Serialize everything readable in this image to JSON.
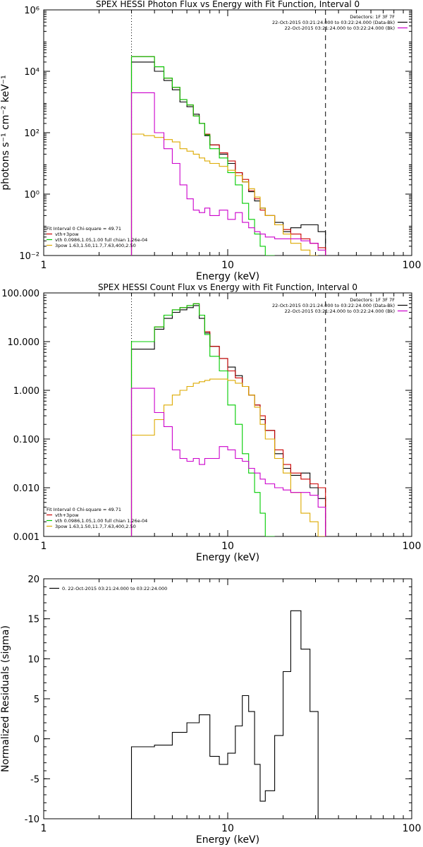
{
  "chart_data": [
    {
      "type": "line",
      "title": "SPEX HESSI Photon Flux vs Energy with Fit Function, Interval 0",
      "xlabel": "Energy (keV)",
      "ylabel": "photons s⁻¹ cm⁻² keV⁻¹",
      "xscale": "log",
      "yscale": "log",
      "xlim": [
        1,
        100
      ],
      "ylim": [
        0.01,
        1000000
      ],
      "xticks": [
        {
          "v": 1,
          "label": "1"
        },
        {
          "v": 10,
          "label": "10"
        },
        {
          "v": 100,
          "label": "100"
        }
      ],
      "yticks": [
        {
          "v": 0.01,
          "label": "10⁻²"
        },
        {
          "v": 1,
          "label": "10⁰"
        },
        {
          "v": 100,
          "label": "10²"
        },
        {
          "v": 10000,
          "label": "10⁴"
        },
        {
          "v": 1000000,
          "label": "10⁶"
        }
      ],
      "vlines": [
        {
          "x": 3.0,
          "style": "dotted"
        },
        {
          "x": 34.0,
          "style": "dashed"
        }
      ],
      "info": [
        "Detectors: 1F 3F 7F",
        "22-Oct-2015 03:21:24.000 to 03:22:24.000 (Data-Bk)",
        "22-Oct-2015 03:21:24.000 to 03:22:24.000 (Bk)"
      ],
      "info_colors": [
        "",
        "#000000",
        "#cc00cc"
      ],
      "legend": [
        {
          "label": "Fit Interval 0   Chi-square = 49.71",
          "color": ""
        },
        {
          "label": "vth+3pow",
          "color": "#cc0000"
        },
        {
          "label": "vth 0.0986,1.05,1.00  full chian 1.26e-04",
          "color": "#00cc00"
        },
        {
          "label": "3pow 1.63,1.50,11.7,7.63,400,2.50",
          "color": "#ddaa00"
        }
      ],
      "edges": [
        3.0,
        3.5,
        4.0,
        4.5,
        5.0,
        5.5,
        6.0,
        6.5,
        7.0,
        7.5,
        8.0,
        9.0,
        10.0,
        11.0,
        12.0,
        13.0,
        14.0,
        15.0,
        16.0,
        18.0,
        20.0,
        22.0,
        25.0,
        28.0,
        31.0,
        34.0
      ],
      "series": [
        {
          "name": "Data-Bk",
          "color": "#000000",
          "values": [
            20000,
            20000,
            10000,
            5000,
            2500,
            1000,
            700,
            400,
            200,
            80,
            40,
            20,
            10,
            5,
            2.5,
            1.2,
            0.6,
            0.35,
            0.2,
            0.12,
            0.06,
            0.08,
            0.1,
            0.1,
            0.06
          ]
        },
        {
          "name": "vth+3pow",
          "color": "#cc0000",
          "values": [
            30000,
            30000,
            14000,
            6000,
            3000,
            1200,
            800,
            350,
            200,
            90,
            40,
            22,
            12,
            5,
            3,
            1.3,
            0.7,
            0.3,
            0.2,
            0.1,
            0.07,
            0.05,
            0.035,
            0.025,
            0.018
          ]
        },
        {
          "name": "vth",
          "color": "#00cc00",
          "values": [
            30000,
            30000,
            14000,
            6000,
            3000,
            1200,
            800,
            350,
            200,
            85,
            30,
            15,
            5,
            2,
            0.5,
            0.15,
            0.05,
            0.02,
            0.01
          ]
        },
        {
          "name": "3pow",
          "color": "#ddaa00",
          "values": [
            90,
            80,
            70,
            60,
            50,
            30,
            25,
            20,
            15,
            12,
            10,
            8,
            6,
            4,
            2.5,
            1.5,
            0.8,
            0.35,
            0.2,
            0.1,
            0.05,
            0.025,
            0.015,
            0.01
          ]
        },
        {
          "name": "Bk",
          "color": "#cc00cc",
          "values": [
            2000,
            2000,
            100,
            30,
            10,
            2,
            0.7,
            0.3,
            0.25,
            0.35,
            0.2,
            0.3,
            0.15,
            0.25,
            0.12,
            0.08,
            0.06,
            0.05,
            0.04,
            0.035,
            0.035,
            0.035,
            0.03,
            0.025,
            0.015
          ]
        }
      ]
    },
    {
      "type": "line",
      "title": "SPEX HESSI Count Flux vs Energy with Fit Function, Interval 0",
      "xlabel": "Energy (keV)",
      "ylabel": "",
      "xscale": "log",
      "yscale": "log",
      "xlim": [
        1,
        100
      ],
      "ylim": [
        0.001,
        100
      ],
      "xticks": [
        {
          "v": 1,
          "label": "1"
        },
        {
          "v": 10,
          "label": "10"
        },
        {
          "v": 100,
          "label": "100"
        }
      ],
      "yticks": [
        {
          "v": 0.001,
          "label": "0.001"
        },
        {
          "v": 0.01,
          "label": "0.010"
        },
        {
          "v": 0.1,
          "label": "0.100"
        },
        {
          "v": 1,
          "label": "1.000"
        },
        {
          "v": 10,
          "label": "10.000"
        },
        {
          "v": 100,
          "label": "100.000"
        }
      ],
      "vlines": [
        {
          "x": 3.0,
          "style": "dotted"
        },
        {
          "x": 34.0,
          "style": "dashed"
        }
      ],
      "info": [
        "Detectors: 1F 3F 7F",
        "22-Oct-2015 03:21:24.000 to 03:22:24.000 (Data-Bk)",
        "22-Oct-2015 03:21:24.000 to 03:22:24.000 (Bk)"
      ],
      "info_colors": [
        "",
        "#000000",
        "#cc00cc"
      ],
      "legend": [
        {
          "label": "Fit Interval 0   Chi-square = 49.71",
          "color": ""
        },
        {
          "label": "vth+3pow",
          "color": "#cc0000"
        },
        {
          "label": "vth 0.0986,1.05,1.00  full chian 1.26e-04",
          "color": "#00cc00"
        },
        {
          "label": "3pow 1.63,1.50,11.7,7.63,400,2.50",
          "color": "#ddaa00"
        }
      ],
      "edges": [
        3.0,
        3.5,
        4.0,
        4.5,
        5.0,
        5.5,
        6.0,
        6.5,
        7.0,
        7.5,
        8.0,
        9.0,
        10.0,
        11.0,
        12.0,
        13.0,
        14.0,
        15.0,
        16.0,
        18.0,
        20.0,
        22.0,
        25.0,
        28.0,
        31.0,
        34.0
      ],
      "series": [
        {
          "name": "Data-Bk",
          "color": "#000000",
          "values": [
            7,
            7,
            18,
            30,
            40,
            45,
            50,
            55,
            30,
            15,
            8,
            4.5,
            3,
            2,
            1.2,
            0.8,
            0.5,
            0.25,
            0.15,
            0.05,
            0.025,
            0.018,
            0.02,
            0.01,
            0.006
          ]
        },
        {
          "name": "vth+3pow",
          "color": "#cc0000",
          "values": [
            10,
            10,
            20,
            35,
            45,
            50,
            55,
            60,
            35,
            16,
            8,
            4.5,
            2.5,
            1.8,
            1.2,
            0.8,
            0.5,
            0.3,
            0.15,
            0.06,
            0.03,
            0.02,
            0.015,
            0.012,
            0.01
          ]
        },
        {
          "name": "vth",
          "color": "#00cc00",
          "values": [
            10,
            10,
            20,
            35,
            45,
            50,
            55,
            60,
            35,
            14,
            5,
            2.5,
            0.5,
            0.2,
            0.05,
            0.02,
            0.008,
            0.003,
            0.001
          ]
        },
        {
          "name": "3pow",
          "color": "#ddaa00",
          "values": [
            0.12,
            0.12,
            0.25,
            0.5,
            0.8,
            1.0,
            1.2,
            1.4,
            1.5,
            1.6,
            1.7,
            1.7,
            1.6,
            1.4,
            1.2,
            0.8,
            0.45,
            0.2,
            0.1,
            0.04,
            0.02,
            0.008,
            0.003,
            0.002,
            0.001
          ]
        },
        {
          "name": "Bk",
          "color": "#cc00cc",
          "values": [
            1.1,
            1.1,
            0.35,
            0.18,
            0.06,
            0.04,
            0.035,
            0.04,
            0.03,
            0.04,
            0.04,
            0.07,
            0.06,
            0.04,
            0.035,
            0.025,
            0.02,
            0.015,
            0.012,
            0.01,
            0.009,
            0.008,
            0.008,
            0.007,
            0.004
          ]
        }
      ]
    },
    {
      "type": "line",
      "title": "",
      "xlabel": "Energy (keV)",
      "ylabel": "Normalized Residuals (sigma)",
      "xscale": "log",
      "yscale": "linear",
      "xlim": [
        1,
        100
      ],
      "ylim": [
        -10,
        20
      ],
      "xticks": [
        {
          "v": 1,
          "label": "1"
        },
        {
          "v": 10,
          "label": "10"
        },
        {
          "v": 100,
          "label": "100"
        }
      ],
      "yticks": [
        {
          "v": -10,
          "label": "-10"
        },
        {
          "v": -5,
          "label": "-5"
        },
        {
          "v": 0,
          "label": "0"
        },
        {
          "v": 5,
          "label": "5"
        },
        {
          "v": 10,
          "label": "10"
        },
        {
          "v": 15,
          "label": "15"
        },
        {
          "v": 20,
          "label": "20"
        }
      ],
      "vlines": [],
      "info": [],
      "info_colors": [],
      "legend": [
        {
          "label": "0. 22-Oct-2015 03:21:24.000 to 03:22:24.000",
          "color": "#000000"
        }
      ],
      "edges": [
        3.0,
        4.0,
        5.0,
        6.0,
        7.0,
        8.0,
        9.0,
        10.0,
        11.0,
        12.0,
        13.0,
        14.0,
        15.0,
        16.0,
        18.0,
        20.0,
        22.0,
        25.0,
        28.0,
        31.0,
        34.0
      ],
      "series": [
        {
          "name": "Residuals",
          "color": "#000000",
          "values": [
            -1.0,
            -0.8,
            0.8,
            2.0,
            3.0,
            -2.2,
            -3.2,
            -1.8,
            1.6,
            5.4,
            3.4,
            -3.2,
            -7.8,
            -6.5,
            0.4,
            8.4,
            16.0,
            11.2,
            3.4,
            -10.0
          ]
        }
      ]
    }
  ]
}
